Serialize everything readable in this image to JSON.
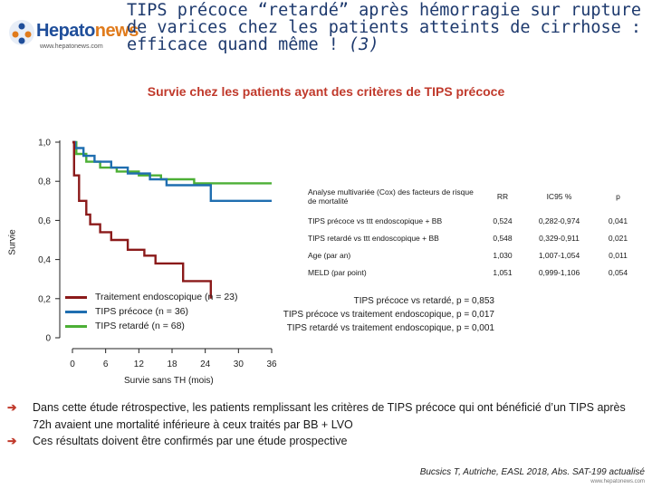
{
  "header": {
    "logo_name_a": "Hepato",
    "logo_name_b": "news",
    "logo_url": "www.hepatonews.com",
    "title_line1": "TIPS précoce “retardé” après hémorragie sur rupture",
    "title_line2": "de varices chez les patients atteints de cirrhose :",
    "title_line3a": "efficace quand même !",
    "title_line3b": "(3)"
  },
  "colors": {
    "title": "#1e3a6e",
    "accent_red": "#c0392b",
    "series_traitement": "#8b1a1a",
    "series_precoce": "#1f6eb0",
    "series_retarde": "#4caf35"
  },
  "chart_data": {
    "type": "line",
    "title": "Survie chez les patients ayant des critères de TIPS précoce",
    "xlabel": "Survie sans TH (mois)",
    "ylabel": "Survie",
    "xlim": [
      0,
      36
    ],
    "ylim": [
      0,
      1.0
    ],
    "x_ticks": [
      "0",
      "6",
      "12",
      "18",
      "24",
      "30",
      "36"
    ],
    "y_ticks": [
      "0",
      "0,2",
      "0,4",
      "0,6",
      "0,8",
      "1,0"
    ],
    "series": [
      {
        "name": "Traitement endoscopique (n = 23)",
        "x": [
          0,
          0.3,
          0.3,
          1.2,
          1.2,
          2.5,
          2.5,
          3.2,
          3.2,
          5,
          5,
          7,
          7,
          10,
          10,
          13,
          13,
          15,
          15,
          20,
          20,
          25,
          25
        ],
        "y": [
          1.0,
          1.0,
          0.83,
          0.83,
          0.7,
          0.7,
          0.63,
          0.63,
          0.58,
          0.58,
          0.54,
          0.54,
          0.5,
          0.5,
          0.45,
          0.45,
          0.42,
          0.42,
          0.38,
          0.38,
          0.29,
          0.29,
          0.2
        ]
      },
      {
        "name": "TIPS précoce (n = 36)",
        "x": [
          0,
          0.5,
          0.5,
          2,
          2,
          4,
          4,
          7,
          7,
          10,
          10,
          14,
          14,
          17,
          17,
          25,
          25,
          36
        ],
        "y": [
          1.0,
          1.0,
          0.97,
          0.97,
          0.93,
          0.93,
          0.9,
          0.9,
          0.87,
          0.87,
          0.84,
          0.84,
          0.81,
          0.81,
          0.78,
          0.78,
          0.7,
          0.7
        ]
      },
      {
        "name": "TIPS retardé (n = 68)",
        "x": [
          0,
          0.7,
          0.7,
          2.5,
          2.5,
          5,
          5,
          8,
          8,
          12,
          12,
          16,
          16,
          22,
          22,
          36
        ],
        "y": [
          1.0,
          1.0,
          0.94,
          0.94,
          0.9,
          0.9,
          0.87,
          0.87,
          0.85,
          0.85,
          0.83,
          0.83,
          0.81,
          0.81,
          0.79,
          0.79
        ]
      }
    ],
    "legend_position": "bottom-left"
  },
  "stats_table": {
    "header": [
      "Analyse multivariée (Cox) des facteurs de risque de mortalité",
      "RR",
      "IC95 %",
      "p"
    ],
    "rows": [
      [
        "TIPS précoce vs ttt endoscopique + BB",
        "0,524",
        "0,282-0,974",
        "0,041"
      ],
      [
        "TIPS retardé vs ttt endoscopique + BB",
        "0,548",
        "0,329-0,911",
        "0,021"
      ],
      [
        "Age (par an)",
        "1,030",
        "1,007-1,054",
        "0,011"
      ],
      [
        "MELD (par point)",
        "1,051",
        "0,999-1,106",
        "0,054"
      ]
    ]
  },
  "p_values": [
    "TIPS précoce vs retardé, p = 0,853",
    "TIPS précoce vs traitement endoscopique, p = 0,017",
    "TIPS retardé vs traitement endoscopique, p = 0,001"
  ],
  "bullets": [
    "Dans cette étude rétrospective, les patients remplissant les critères de TIPS précoce qui ont bénéficié d’un TIPS après 72h avaient une mortalité inférieure à ceux traités par BB + LVO",
    "Ces résultats doivent être confirmés par une étude prospective"
  ],
  "reference": "Bucsics T, Autriche, EASL 2018, Abs. SAT-199 actualisé",
  "footer_url": "www.hepatonews.com"
}
